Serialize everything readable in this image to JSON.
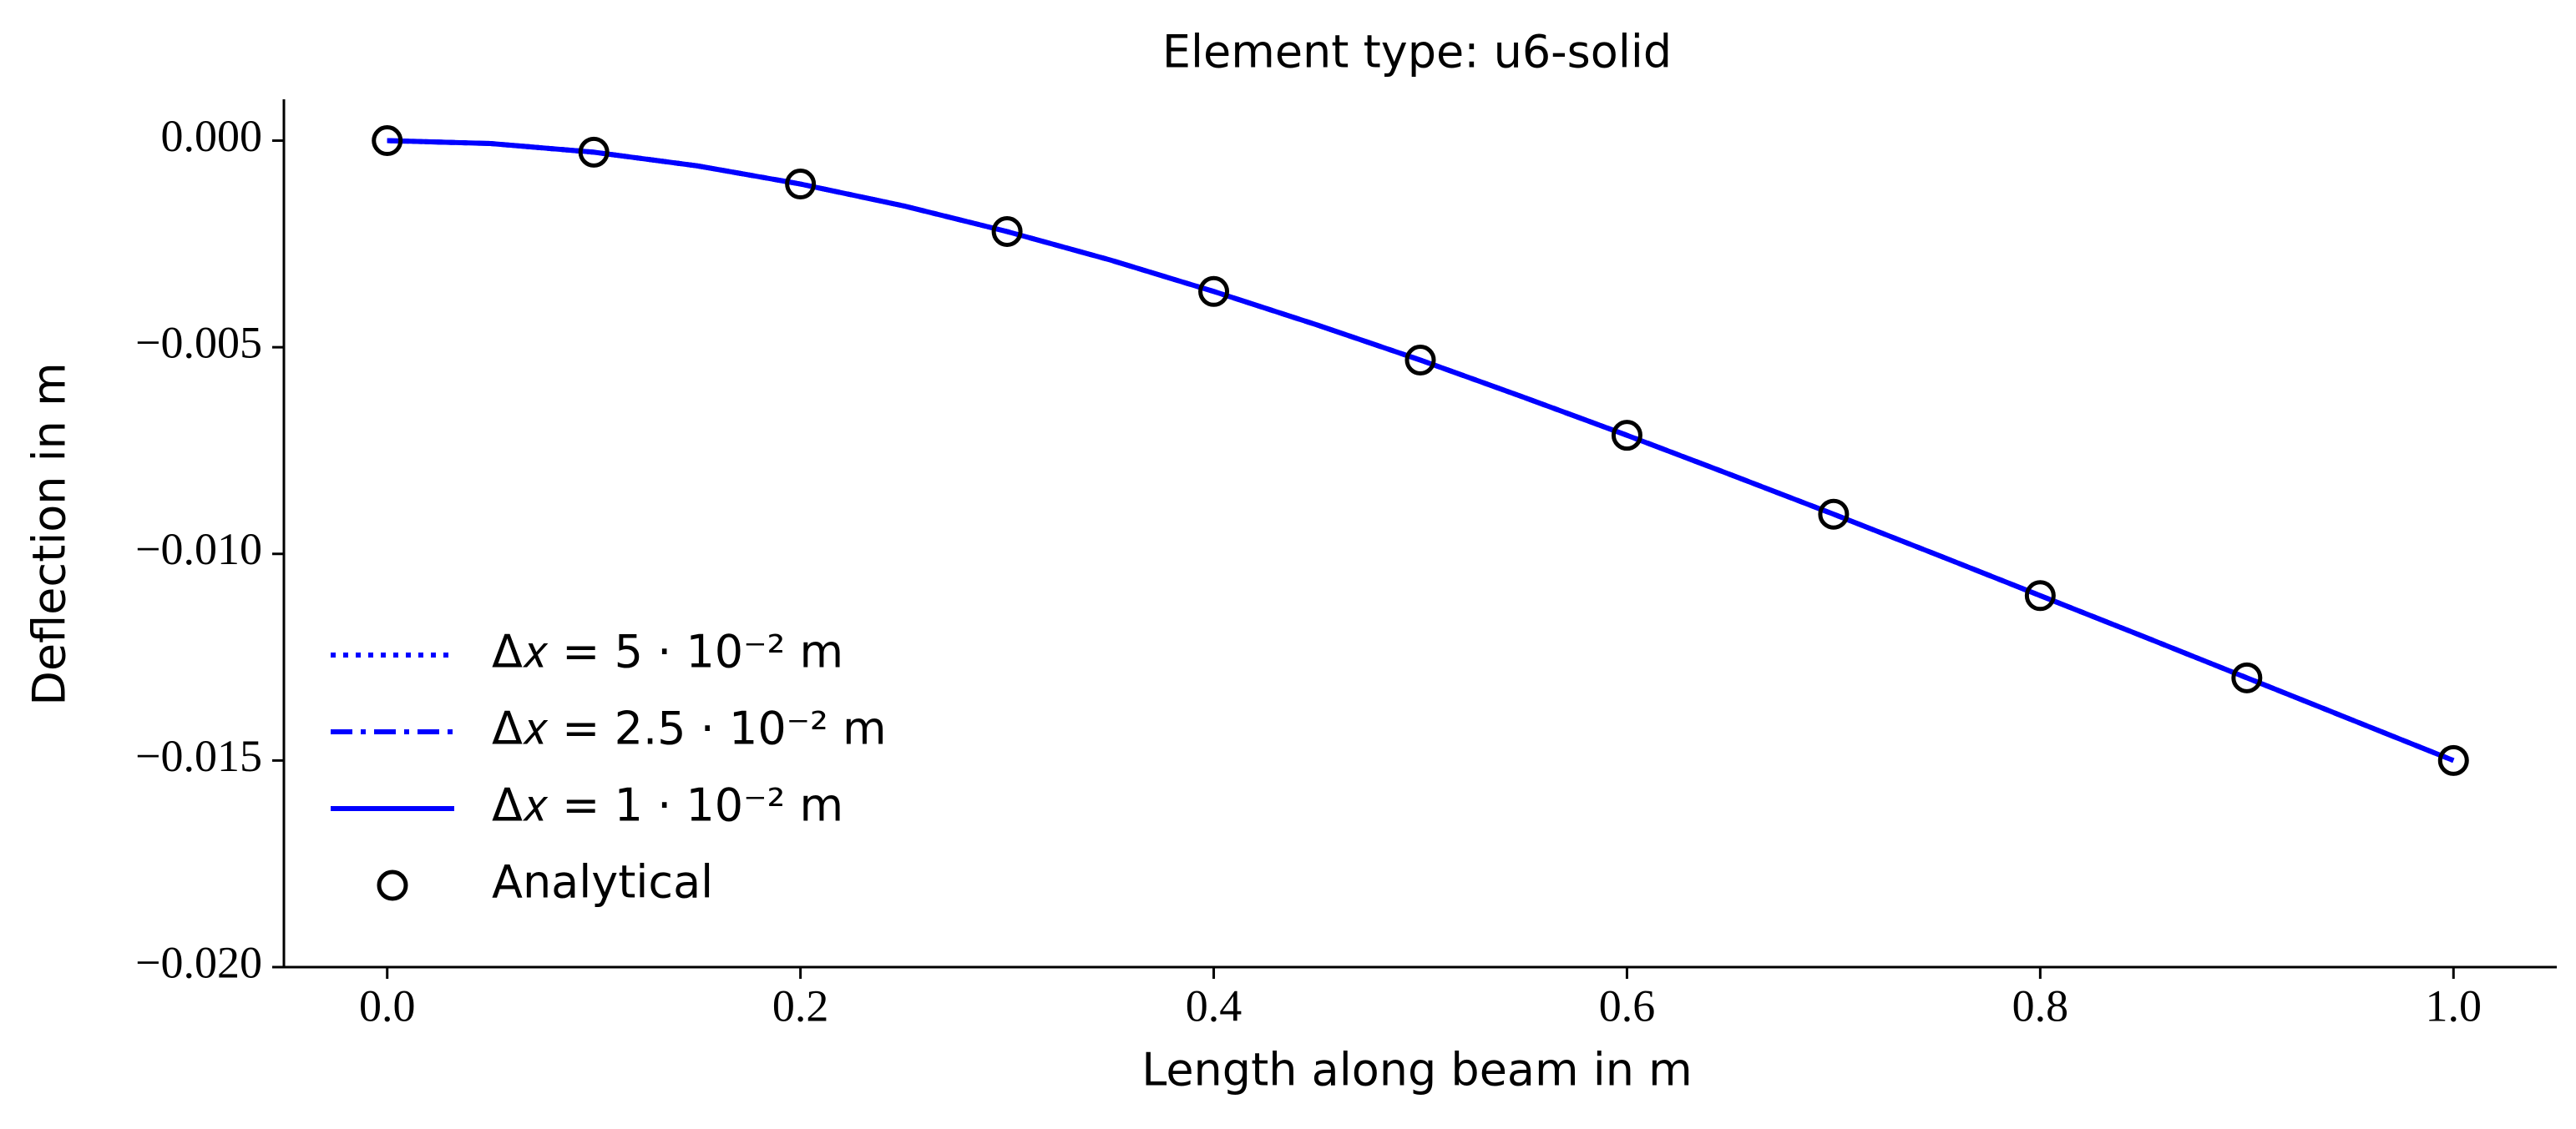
{
  "chart_data": {
    "type": "line",
    "title": "Element type: u6-solid",
    "xlabel": "Length along beam in m",
    "ylabel": "Deflection in m",
    "xlim": [
      -0.05,
      1.05
    ],
    "ylim": [
      -0.02,
      0.001
    ],
    "xticks": [
      {
        "value": 0,
        "label": "0.0"
      },
      0.2,
      0.4,
      0.6,
      0.8,
      {
        "value": 1,
        "label": "1.0"
      }
    ],
    "yticks": [
      {
        "value": 0,
        "label": "0.000"
      },
      {
        "value": -0.005,
        "label": "−0.005"
      },
      {
        "value": -0.01,
        "label": "−0.010"
      },
      {
        "value": -0.015,
        "label": "−0.015"
      },
      {
        "value": -0.02,
        "label": "−0.020"
      }
    ],
    "grid": false,
    "legend": "lower left",
    "series": [
      {
        "name": "Δ𝑥 = 5 · 10⁻² m",
        "color": "#0000ff",
        "style": "dotted",
        "x": [
          0,
          0.05,
          0.1,
          0.15,
          0.2,
          0.25,
          0.3,
          0.35,
          0.4,
          0.45,
          0.5,
          0.55,
          0.6,
          0.65,
          0.7,
          0.75,
          0.8,
          0.85,
          0.9,
          0.95,
          1
        ],
        "values": [
          0,
          -7e-05,
          -0.00028,
          -0.00061,
          -0.00105,
          -0.00158,
          -0.0022,
          -0.00289,
          -0.00365,
          -0.00446,
          -0.00531,
          -0.00621,
          -0.00713,
          -0.00808,
          -0.00904,
          -0.01002,
          -0.01101,
          -0.012,
          -0.013,
          -0.014,
          -0.015
        ]
      },
      {
        "name": "Δ𝑥 = 2.5 · 10⁻² m",
        "color": "#0000ff",
        "style": "dashdot",
        "x": [
          0,
          0.05,
          0.1,
          0.15,
          0.2,
          0.25,
          0.3,
          0.35,
          0.4,
          0.45,
          0.5,
          0.55,
          0.6,
          0.65,
          0.7,
          0.75,
          0.8,
          0.85,
          0.9,
          0.95,
          1
        ],
        "values": [
          0,
          -7e-05,
          -0.00028,
          -0.00061,
          -0.00105,
          -0.00158,
          -0.0022,
          -0.00289,
          -0.00365,
          -0.00446,
          -0.00531,
          -0.00621,
          -0.00713,
          -0.00808,
          -0.00904,
          -0.01002,
          -0.01101,
          -0.012,
          -0.013,
          -0.014,
          -0.015
        ]
      },
      {
        "name": "Δ𝑥 = 1 · 10⁻² m",
        "color": "#0000ff",
        "style": "solid",
        "x": [
          0,
          0.05,
          0.1,
          0.15,
          0.2,
          0.25,
          0.3,
          0.35,
          0.4,
          0.45,
          0.5,
          0.55,
          0.6,
          0.65,
          0.7,
          0.75,
          0.8,
          0.85,
          0.9,
          0.95,
          1
        ],
        "values": [
          0,
          -7e-05,
          -0.00028,
          -0.00061,
          -0.00105,
          -0.00158,
          -0.0022,
          -0.00289,
          -0.00365,
          -0.00446,
          -0.00531,
          -0.00621,
          -0.00713,
          -0.00808,
          -0.00904,
          -0.01002,
          -0.01101,
          -0.012,
          -0.013,
          -0.014,
          -0.015
        ]
      },
      {
        "name": "Analytical",
        "color": "#000000",
        "style": "none",
        "marker": "circle",
        "x": [
          0,
          0.1,
          0.2,
          0.3,
          0.4,
          0.5,
          0.6,
          0.7,
          0.8,
          0.9,
          1
        ],
        "values": [
          0,
          -0.00028,
          -0.00105,
          -0.0022,
          -0.00365,
          -0.00531,
          -0.00713,
          -0.00904,
          -0.01101,
          -0.013,
          -0.015
        ]
      }
    ]
  }
}
